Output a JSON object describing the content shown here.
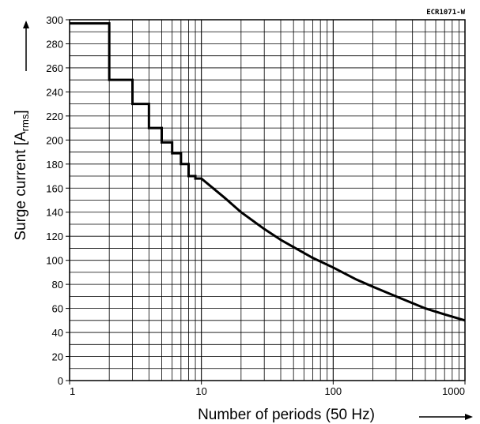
{
  "chart_data": {
    "type": "line",
    "title": "",
    "figure_code": "ECR1071-W",
    "xlabel": "Number of periods (50 Hz)",
    "ylabel": {
      "main": "Surge current [A",
      "sub": "rms",
      "close": "]"
    },
    "xscale": "log",
    "xlim": [
      1,
      1000
    ],
    "ylim": [
      0,
      300
    ],
    "x_ticks": [
      1,
      10,
      100,
      1000
    ],
    "x_tick_labels": [
      "1",
      "10",
      "100",
      "1000"
    ],
    "y_ticks": [
      0,
      20,
      40,
      60,
      80,
      100,
      120,
      140,
      160,
      180,
      200,
      220,
      240,
      260,
      280,
      300
    ],
    "y_tick_labels": [
      "0",
      "20",
      "40",
      "60",
      "80",
      "100",
      "120",
      "140",
      "160",
      "180",
      "200",
      "220",
      "240",
      "260",
      "280",
      "300"
    ],
    "grid": true,
    "legend": "none",
    "series": [
      {
        "x": [
          1,
          2,
          2,
          3,
          3,
          4,
          4,
          5,
          5,
          6,
          6,
          7,
          7,
          8,
          8,
          9,
          9,
          10,
          15,
          20,
          30,
          40,
          50,
          70,
          100,
          150,
          200,
          300,
          500,
          700,
          1000
        ],
        "y": [
          297,
          297,
          250,
          250,
          230,
          230,
          210,
          210,
          198,
          198,
          189,
          189,
          180,
          180,
          170,
          170,
          168,
          168,
          152,
          140,
          126,
          117,
          111,
          102,
          94,
          84,
          78,
          70,
          60,
          55,
          50
        ]
      }
    ],
    "colors": {
      "line": "#000000",
      "grid": "#000000"
    }
  }
}
